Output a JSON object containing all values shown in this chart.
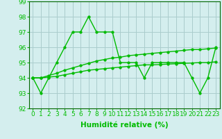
{
  "x": [
    0,
    1,
    2,
    3,
    4,
    5,
    6,
    7,
    8,
    9,
    10,
    11,
    12,
    13,
    14,
    15,
    16,
    17,
    18,
    19,
    20,
    21,
    22,
    23
  ],
  "line_spiky": [
    94,
    93,
    94,
    95,
    96,
    97,
    97,
    98,
    97,
    97,
    97,
    95,
    95,
    95,
    94,
    95,
    95,
    95,
    95,
    95,
    94,
    93,
    94,
    96
  ],
  "line_upper": [
    94.0,
    94.0,
    94.15,
    94.3,
    94.5,
    94.65,
    94.8,
    94.95,
    95.1,
    95.2,
    95.3,
    95.35,
    95.45,
    95.5,
    95.55,
    95.6,
    95.65,
    95.7,
    95.75,
    95.8,
    95.85,
    95.85,
    95.9,
    95.95
  ],
  "line_lower": [
    94.0,
    94.0,
    94.05,
    94.1,
    94.2,
    94.3,
    94.4,
    94.5,
    94.55,
    94.6,
    94.65,
    94.7,
    94.75,
    94.8,
    94.85,
    94.85,
    94.87,
    94.9,
    94.92,
    94.95,
    94.97,
    95.0,
    95.0,
    95.05
  ],
  "line_color": "#00bb00",
  "bg_color": "#d4eeee",
  "grid_color": "#bbdddd",
  "xlabel": "Humidité relative (%)",
  "ylim": [
    92,
    99
  ],
  "yticks": [
    92,
    93,
    94,
    95,
    96,
    97,
    98,
    99
  ],
  "xticks": [
    0,
    1,
    2,
    3,
    4,
    5,
    6,
    7,
    8,
    9,
    10,
    11,
    12,
    13,
    14,
    15,
    16,
    17,
    18,
    19,
    20,
    21,
    22,
    23
  ],
  "xlabel_fontsize": 7.5,
  "tick_fontsize": 6.5,
  "line_width": 1.0,
  "marker_size": 2.5
}
